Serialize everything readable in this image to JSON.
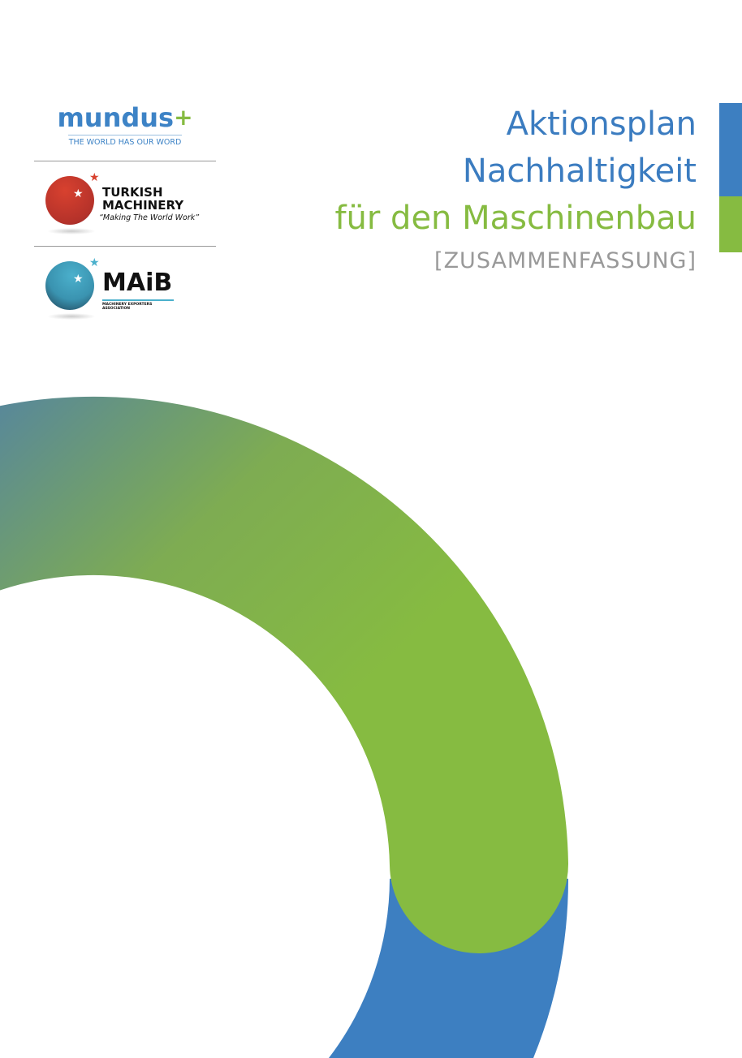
{
  "logos": {
    "mundus": {
      "name": "mundus",
      "plus": "+",
      "tagline": "THE WORLD HAS OUR WORD"
    },
    "turkish_machinery": {
      "line1": "TURKISH",
      "line2": "MACHINERY",
      "slogan": "“Making The World Work”"
    },
    "maib": {
      "name": "MAiB",
      "subtitle": "MACHINERY EXPORTERS ASSOCIATION"
    }
  },
  "title": {
    "line1": "Aktionsplan",
    "line2": "Nachhaltigkeit",
    "line3": "für den Maschinenbau",
    "subtitle": "[ZUSAMMENFASSUNG]"
  },
  "colors": {
    "blue": "#3d7fc1",
    "green": "#86bb41",
    "grey": "#999999"
  }
}
